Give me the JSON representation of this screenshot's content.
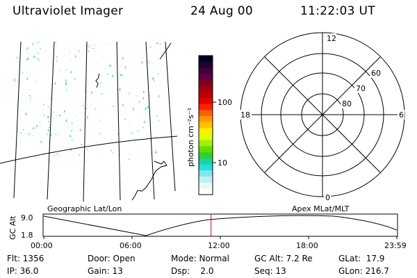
{
  "header": {
    "instrument": "Ultraviolet Imager",
    "date": "24 Aug 00",
    "time": "11:22:03 UT"
  },
  "colorbar": {
    "unit_label": "photon cm⁻²s⁻¹",
    "ticks": [
      "100",
      "10"
    ],
    "colors": [
      "#000020",
      "#200030",
      "#400040",
      "#600040",
      "#800020",
      "#a00010",
      "#c00000",
      "#e00000",
      "#ff2000",
      "#ff6000",
      "#ff9900",
      "#ffc000",
      "#ffee00",
      "#e0ff00",
      "#a0f000",
      "#60e000",
      "#30d030",
      "#20d0a0",
      "#20e0e0",
      "#80e8e8",
      "#c0f0f0",
      "#e8f8f8",
      "#ffffff"
    ]
  },
  "map": {
    "label": "Geographic Lat/Lon"
  },
  "polar": {
    "label": "Apex MLat/MLT",
    "mlt_labels": [
      "12",
      "18",
      "6",
      "0"
    ],
    "lat_labels": [
      "60",
      "70",
      "80"
    ]
  },
  "altitude_plot": {
    "ylabel": "GC Alt",
    "ytick_top": "9.0",
    "ytick_bottom": "1.8",
    "x_ticks": [
      "00:00",
      "06:00",
      "12:00",
      "18:00",
      "23:59"
    ],
    "current_time_hours": 11.37,
    "line_color": "#cc0000"
  },
  "info": {
    "flt": "Flt: 1356",
    "ip": "IP: 36.0",
    "door": "Door: Open",
    "gain": "Gain: 13",
    "mode": "Mode: Normal",
    "dsp": "Dsp:    2.0",
    "gc_alt": "GC Alt: 7.2 Re",
    "seq": "Seq: 13",
    "glat": "GLat:  17.9",
    "glon": "GLon: 216.7"
  }
}
